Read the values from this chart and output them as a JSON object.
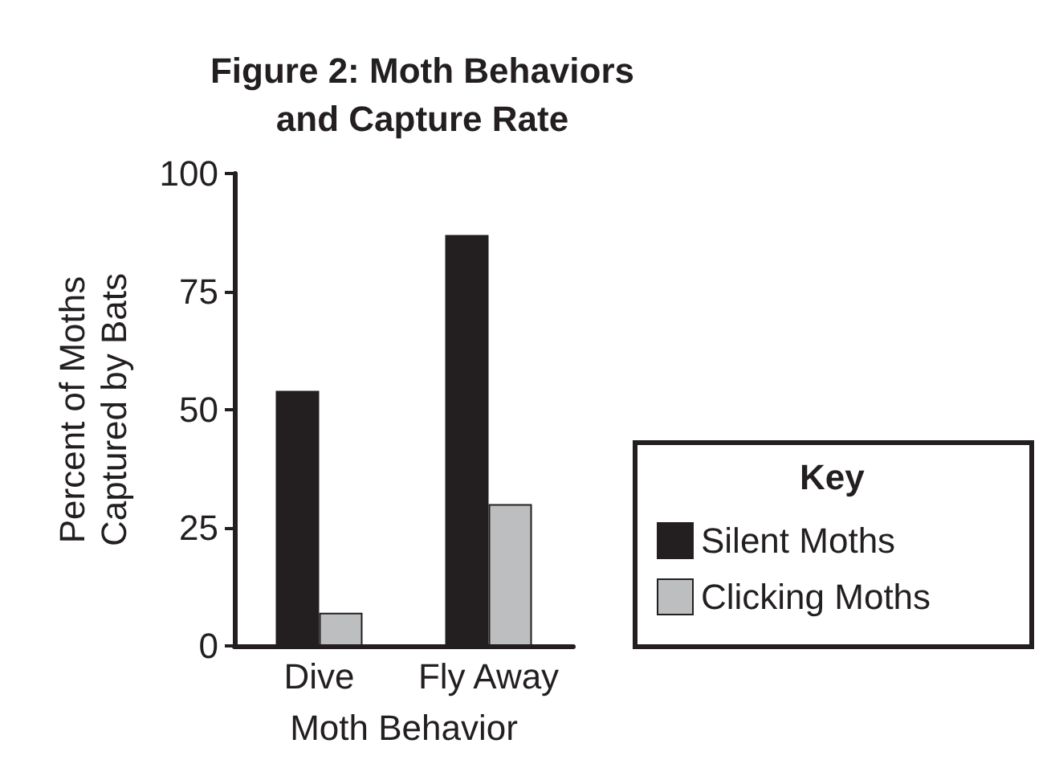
{
  "chart_data": {
    "type": "bar",
    "title": "Figure 2: Moth Behaviors\nand Capture Rate",
    "xlabel": "Moth Behavior",
    "ylabel": "Percent of Moths\nCaptured by Bats",
    "legend_title": "Key",
    "categories": [
      "Dive",
      "Fly Away"
    ],
    "series": [
      {
        "name": "Silent Moths",
        "color": "#231f20",
        "values": [
          54,
          87
        ]
      },
      {
        "name": "Clicking Moths",
        "color": "#bcbec0",
        "values": [
          7,
          30
        ]
      }
    ],
    "ylim": [
      0,
      100
    ],
    "yticks": [
      0,
      25,
      50,
      75,
      100
    ],
    "grid": false,
    "legend": "right"
  }
}
